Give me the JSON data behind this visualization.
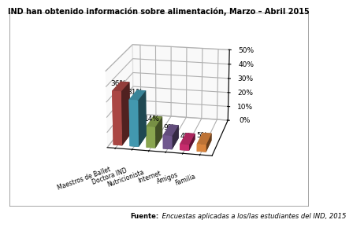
{
  "categories": [
    "Maestros de Ballet",
    "Doctora IND",
    "Nutricionista",
    "Internet",
    "Amigos",
    "Familia"
  ],
  "values": [
    36,
    31,
    14,
    9,
    4,
    5
  ],
  "bar_colors_top": [
    "#d9534f",
    "#5bc0de",
    "#a8b84b",
    "#7c5faa",
    "#e83e8c",
    "#f0a030"
  ],
  "bar_colors_side": [
    "#b03030",
    "#2a9db5",
    "#7a9030",
    "#5a3f88",
    "#c01060",
    "#c07010"
  ],
  "bar_colors_front": [
    "#c0504d",
    "#4bacc6",
    "#9bbb59",
    "#8064a2",
    "#e0317a",
    "#f79646"
  ],
  "title": "IND han obtenido información sobre alimentación, Marzo – Abril 2015",
  "ytick_labels": [
    "0%",
    "10%",
    "20%",
    "30%",
    "40%",
    "50%"
  ],
  "yticks": [
    0,
    10,
    20,
    30,
    40,
    50
  ],
  "source_bold": "Fuente:",
  "source_rest": " Encuestas aplicadas a los/las estudiantes del IND, 2015",
  "title_fontsize": 7,
  "tick_fontsize": 6.5,
  "label_fontsize": 5.5,
  "source_fontsize": 6
}
